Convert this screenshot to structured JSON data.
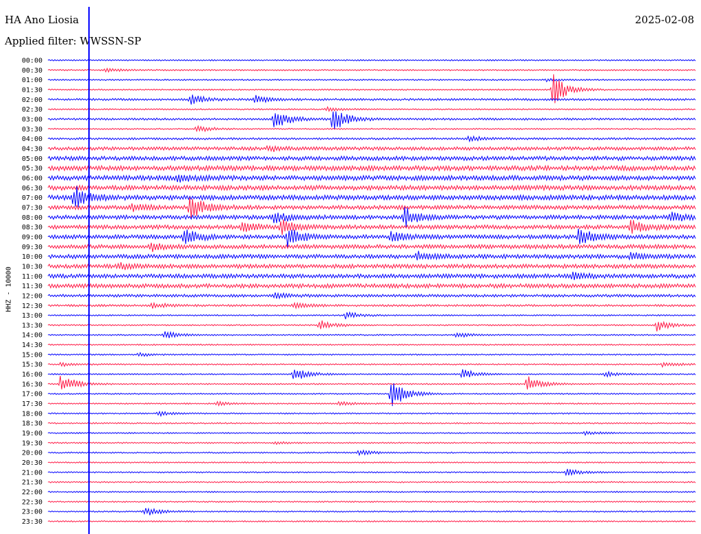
{
  "header": {
    "station": "HA Ano Liosia",
    "date": "2025-02-08",
    "filter": "Applied filter: WWSSN-SP"
  },
  "chart_data": {
    "type": "line",
    "title": "HA Ano Liosia",
    "ylabel": "HHZ - 10000",
    "xlabel": "",
    "grid": false,
    "colors": {
      "even_rows": "#0000ff",
      "odd_rows": "#ff1744"
    },
    "rows": [
      {
        "label": "00:00",
        "noise": 1,
        "events": []
      },
      {
        "label": "00:30",
        "noise": 1,
        "events": [
          {
            "x": 0.09,
            "amp": 3
          }
        ]
      },
      {
        "label": "01:00",
        "noise": 1,
        "events": [
          {
            "x": 0.77,
            "amp": 2
          }
        ]
      },
      {
        "label": "01:30",
        "noise": 1,
        "events": [
          {
            "x": 0.78,
            "amp": 25
          }
        ]
      },
      {
        "label": "02:00",
        "noise": 1.5,
        "events": [
          {
            "x": 0.22,
            "amp": 8
          },
          {
            "x": 0.32,
            "amp": 6
          }
        ]
      },
      {
        "label": "02:30",
        "noise": 1,
        "events": [
          {
            "x": 0.43,
            "amp": 3
          }
        ]
      },
      {
        "label": "03:00",
        "noise": 1.5,
        "events": [
          {
            "x": 0.35,
            "amp": 16
          },
          {
            "x": 0.44,
            "amp": 20
          }
        ]
      },
      {
        "label": "03:30",
        "noise": 1,
        "events": [
          {
            "x": 0.23,
            "amp": 5
          }
        ]
      },
      {
        "label": "04:00",
        "noise": 1.5,
        "events": [
          {
            "x": 0.65,
            "amp": 4
          }
        ]
      },
      {
        "label": "04:30",
        "noise": 2.5,
        "events": [
          {
            "x": 0.34,
            "amp": 4
          }
        ]
      },
      {
        "label": "05:00",
        "noise": 3,
        "events": []
      },
      {
        "label": "05:30",
        "noise": 3.5,
        "events": []
      },
      {
        "label": "06:00",
        "noise": 3.5,
        "events": [
          {
            "x": 0.2,
            "amp": 5
          }
        ]
      },
      {
        "label": "06:30",
        "noise": 3.5,
        "events": []
      },
      {
        "label": "07:00",
        "noise": 3.5,
        "events": [
          {
            "x": 0.04,
            "amp": 18
          }
        ]
      },
      {
        "label": "07:30",
        "noise": 3,
        "events": [
          {
            "x": 0.13,
            "amp": 5
          },
          {
            "x": 0.22,
            "amp": 18
          }
        ]
      },
      {
        "label": "08:00",
        "noise": 3,
        "events": [
          {
            "x": 0.35,
            "amp": 10
          },
          {
            "x": 0.55,
            "amp": 15
          },
          {
            "x": 0.96,
            "amp": 8
          }
        ]
      },
      {
        "label": "08:30",
        "noise": 3,
        "events": [
          {
            "x": 0.3,
            "amp": 8
          },
          {
            "x": 0.36,
            "amp": 10
          },
          {
            "x": 0.9,
            "amp": 12
          }
        ]
      },
      {
        "label": "09:00",
        "noise": 3,
        "events": [
          {
            "x": 0.21,
            "amp": 12
          },
          {
            "x": 0.37,
            "amp": 14
          },
          {
            "x": 0.53,
            "amp": 10
          },
          {
            "x": 0.82,
            "amp": 14
          }
        ]
      },
      {
        "label": "09:30",
        "noise": 3,
        "events": [
          {
            "x": 0.16,
            "amp": 6
          }
        ]
      },
      {
        "label": "10:00",
        "noise": 3,
        "events": [
          {
            "x": 0.57,
            "amp": 6
          },
          {
            "x": 0.9,
            "amp": 5
          }
        ]
      },
      {
        "label": "10:30",
        "noise": 3,
        "events": [
          {
            "x": 0.11,
            "amp": 4
          }
        ]
      },
      {
        "label": "11:00",
        "noise": 3,
        "events": [
          {
            "x": 0.81,
            "amp": 6
          }
        ]
      },
      {
        "label": "11:30",
        "noise": 3,
        "events": []
      },
      {
        "label": "12:00",
        "noise": 2,
        "events": [
          {
            "x": 0.35,
            "amp": 4
          }
        ]
      },
      {
        "label": "12:30",
        "noise": 1.5,
        "events": [
          {
            "x": 0.16,
            "amp": 5
          },
          {
            "x": 0.38,
            "amp": 5
          }
        ]
      },
      {
        "label": "13:00",
        "noise": 1,
        "events": [
          {
            "x": 0.46,
            "amp": 6
          }
        ]
      },
      {
        "label": "13:30",
        "noise": 1,
        "events": [
          {
            "x": 0.42,
            "amp": 8
          },
          {
            "x": 0.94,
            "amp": 9
          }
        ]
      },
      {
        "label": "14:00",
        "noise": 1,
        "events": [
          {
            "x": 0.18,
            "amp": 7
          },
          {
            "x": 0.63,
            "amp": 4
          }
        ]
      },
      {
        "label": "14:30",
        "noise": 1,
        "events": []
      },
      {
        "label": "15:00",
        "noise": 1,
        "events": [
          {
            "x": 0.14,
            "amp": 3
          }
        ]
      },
      {
        "label": "15:30",
        "noise": 1,
        "events": [
          {
            "x": 0.02,
            "amp": 3
          },
          {
            "x": 0.95,
            "amp": 4
          }
        ]
      },
      {
        "label": "16:00",
        "noise": 1,
        "events": [
          {
            "x": 0.38,
            "amp": 10
          },
          {
            "x": 0.64,
            "amp": 8
          },
          {
            "x": 0.86,
            "amp": 4
          }
        ]
      },
      {
        "label": "16:30",
        "noise": 1,
        "events": [
          {
            "x": 0.02,
            "amp": 16
          },
          {
            "x": 0.74,
            "amp": 14
          }
        ]
      },
      {
        "label": "17:00",
        "noise": 1,
        "events": [
          {
            "x": 0.53,
            "amp": 22
          }
        ]
      },
      {
        "label": "17:30",
        "noise": 1,
        "events": [
          {
            "x": 0.26,
            "amp": 3
          },
          {
            "x": 0.45,
            "amp": 3
          }
        ]
      },
      {
        "label": "18:00",
        "noise": 1,
        "events": [
          {
            "x": 0.17,
            "amp": 4
          }
        ]
      },
      {
        "label": "18:30",
        "noise": 1,
        "events": []
      },
      {
        "label": "19:00",
        "noise": 1,
        "events": [
          {
            "x": 0.83,
            "amp": 3
          }
        ]
      },
      {
        "label": "19:30",
        "noise": 1,
        "events": [
          {
            "x": 0.35,
            "amp": 2
          }
        ]
      },
      {
        "label": "20:00",
        "noise": 1,
        "events": [
          {
            "x": 0.48,
            "amp": 5
          }
        ]
      },
      {
        "label": "20:30",
        "noise": 1,
        "events": []
      },
      {
        "label": "21:00",
        "noise": 1,
        "events": [
          {
            "x": 0.8,
            "amp": 6
          }
        ]
      },
      {
        "label": "21:30",
        "noise": 1,
        "events": []
      },
      {
        "label": "22:00",
        "noise": 1,
        "events": []
      },
      {
        "label": "22:30",
        "noise": 1,
        "events": []
      },
      {
        "label": "23:00",
        "noise": 1,
        "events": [
          {
            "x": 0.15,
            "amp": 7
          }
        ]
      },
      {
        "label": "23:30",
        "noise": 1,
        "events": []
      }
    ]
  }
}
